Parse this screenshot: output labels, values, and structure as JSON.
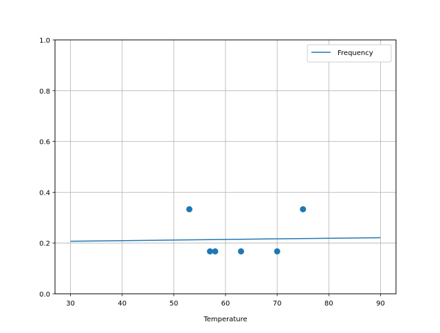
{
  "chart_data": {
    "type": "scatter",
    "title": "",
    "xlabel": "Temperature",
    "ylabel": "",
    "xlim": [
      27,
      93
    ],
    "ylim": [
      0,
      1.0
    ],
    "xticks": [
      30,
      40,
      50,
      60,
      70,
      80,
      90
    ],
    "yticks": [
      0.0,
      0.2,
      0.4,
      0.6,
      0.8,
      1.0
    ],
    "xtick_labels": [
      "30",
      "40",
      "50",
      "60",
      "70",
      "80",
      "90"
    ],
    "ytick_labels": [
      "0.0",
      "0.2",
      "0.4",
      "0.6",
      "0.8",
      "1.0"
    ],
    "grid": true,
    "legend_position": "top-right",
    "color": "#1f77b4",
    "line": {
      "name": "Frequency",
      "x": [
        30,
        90
      ],
      "y": [
        0.207,
        0.221
      ]
    },
    "points": {
      "x": [
        53,
        57,
        58,
        63,
        70,
        75
      ],
      "y": [
        0.333,
        0.167,
        0.167,
        0.167,
        0.167,
        0.333
      ]
    }
  }
}
